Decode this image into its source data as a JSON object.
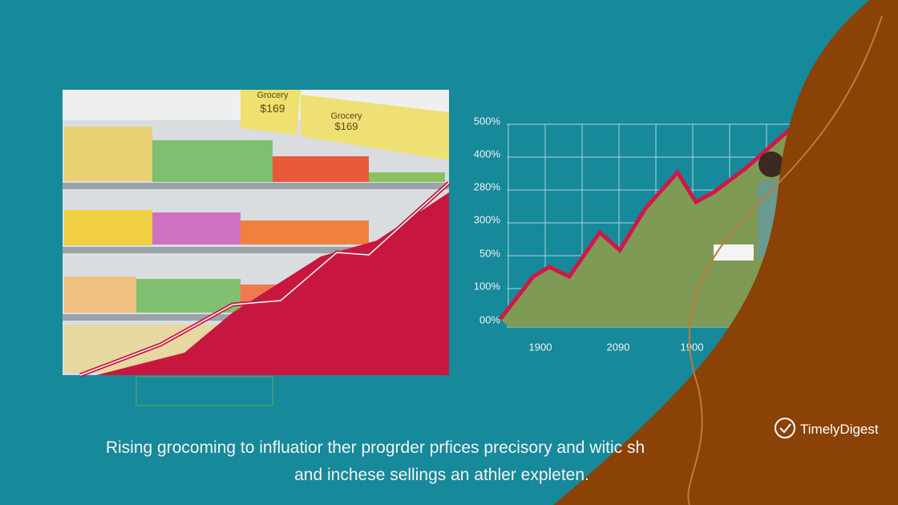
{
  "illustration": {
    "signs": [
      {
        "label": "Grocery",
        "price": "$169"
      },
      {
        "label": "Grocery",
        "price": "$169"
      }
    ]
  },
  "chart": {
    "y_labels": [
      "500%",
      "400%",
      "280%",
      "300%",
      "50%",
      "100%",
      "00%"
    ],
    "x_labels": [
      "1900",
      "2090",
      "1900"
    ]
  },
  "caption": [
    "Rising grocoming to influatior ther progrder prfices precisory and witic sh",
    "and inchese sellings an athler expleten."
  ],
  "brand": {
    "name": "TimelyDigest"
  }
}
